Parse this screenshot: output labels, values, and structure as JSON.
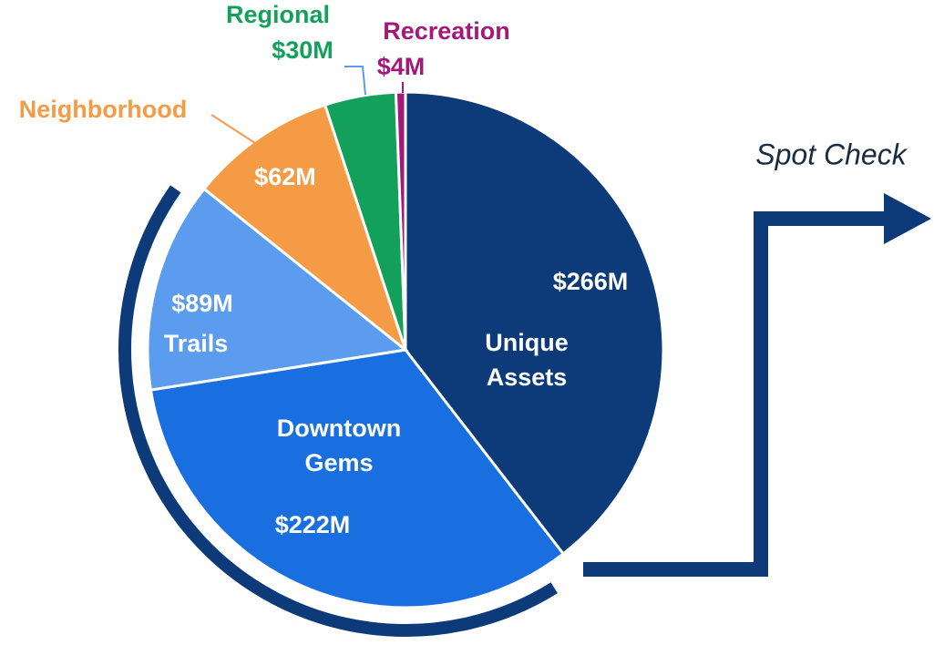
{
  "chart_data": {
    "type": "pie",
    "categories": [
      "Unique Assets",
      "Downtown Gems",
      "Trails",
      "Neighborhood",
      "Regional",
      "Recreation"
    ],
    "values": [
      266,
      222,
      89,
      62,
      30,
      4
    ],
    "value_labels": [
      "$266M",
      "$222M",
      "$89M",
      "$62M",
      "$30M",
      "$4M"
    ],
    "colors": [
      "#0d3a78",
      "#1a6fe0",
      "#5b9cee",
      "#f59b45",
      "#12a05a",
      "#a3197a"
    ],
    "annotation": "Spot Check"
  }
}
